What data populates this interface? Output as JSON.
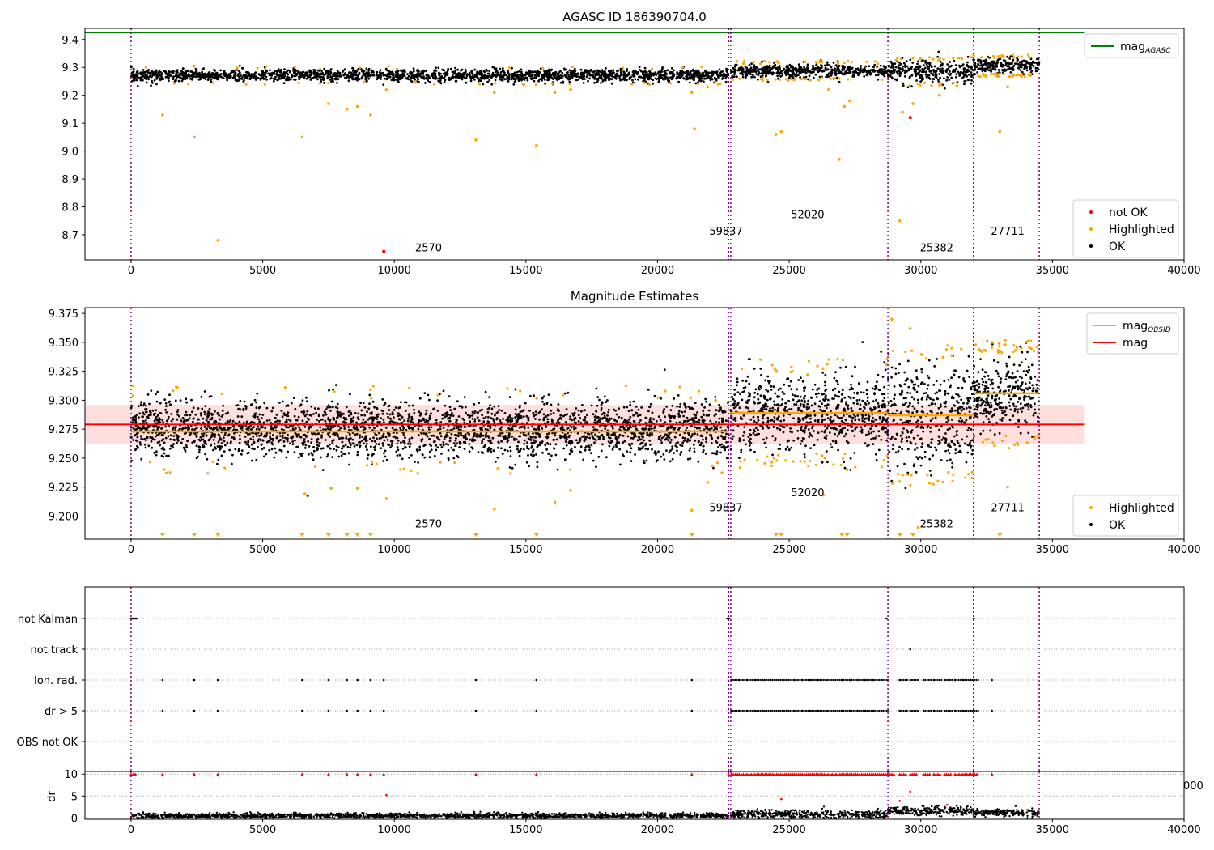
{
  "colors": {
    "ok": "#000000",
    "highlighted": "#ffa500",
    "not_ok": "#ff0000",
    "agasc_line": "#008000",
    "mag_line": "#ff0000",
    "obsid_line": "#ffa500",
    "obs_boundary": "#800080",
    "band": "#ffd6d6"
  },
  "chart_data": [
    {
      "id": "panel1",
      "type": "scatter",
      "title": "AGASC ID 186390704.0",
      "xlabel": "",
      "ylabel": "",
      "xlim": [
        -1750,
        40000
      ],
      "ylim": [
        8.61,
        9.44
      ],
      "x_ticks": [
        0,
        5000,
        10000,
        15000,
        20000,
        25000,
        30000,
        35000,
        40000
      ],
      "y_ticks": [
        8.7,
        8.8,
        8.9,
        9.0,
        9.1,
        9.2,
        9.3,
        9.4
      ],
      "agasc_mag": 9.425,
      "agasc_line_xrange": [
        -1750,
        36200
      ],
      "obs_boundaries": [
        0,
        22700,
        22780,
        28750,
        32000,
        34500
      ],
      "obs_labels": [
        {
          "text": "2570",
          "x": 11300,
          "y": 8.64
        },
        {
          "text": "59837",
          "x": 22600,
          "y": 8.7
        },
        {
          "text": "52020",
          "x": 25700,
          "y": 8.76
        },
        {
          "text": "25382",
          "x": 30600,
          "y": 8.64
        },
        {
          "text": "27711",
          "x": 33300,
          "y": 8.7
        }
      ],
      "segments": [
        {
          "x0": 0,
          "x1": 22700,
          "mean": 9.271,
          "spread": 0.011
        },
        {
          "x0": 22780,
          "x1": 28750,
          "mean": 9.288,
          "spread": 0.012
        },
        {
          "x0": 28750,
          "x1": 32000,
          "mean": 9.285,
          "spread": 0.02
        },
        {
          "x0": 32000,
          "x1": 34500,
          "mean": 9.306,
          "spread": 0.014
        }
      ],
      "highlighted_points": [
        [
          1200,
          9.13
        ],
        [
          2400,
          9.05
        ],
        [
          3300,
          8.68
        ],
        [
          6500,
          9.05
        ],
        [
          7500,
          9.17
        ],
        [
          8200,
          9.15
        ],
        [
          8600,
          9.16
        ],
        [
          9100,
          9.13
        ],
        [
          9700,
          9.22
        ],
        [
          13100,
          9.04
        ],
        [
          13800,
          9.21
        ],
        [
          15400,
          9.02
        ],
        [
          16100,
          9.21
        ],
        [
          16700,
          9.22
        ],
        [
          21400,
          9.08
        ],
        [
          21300,
          9.21
        ],
        [
          21900,
          9.23
        ],
        [
          22300,
          9.24
        ],
        [
          24500,
          9.06
        ],
        [
          24700,
          9.07
        ],
        [
          26500,
          9.22
        ],
        [
          26900,
          8.97
        ],
        [
          27100,
          9.16
        ],
        [
          27300,
          9.18
        ],
        [
          29200,
          8.75
        ],
        [
          29300,
          9.14
        ],
        [
          29700,
          9.17
        ],
        [
          30700,
          9.2
        ],
        [
          33000,
          9.07
        ],
        [
          33300,
          9.23
        ]
      ],
      "not_ok_points": [
        [
          9600,
          8.64
        ],
        [
          29600,
          9.12
        ]
      ],
      "legend_top": [
        {
          "label": "mag",
          "sub": "AGASC",
          "type": "line",
          "color": "#008000"
        }
      ],
      "legend_bottom": [
        {
          "label": "not OK",
          "type": "dot",
          "color": "#ff0000"
        },
        {
          "label": "Highlighted",
          "type": "dot",
          "color": "#ffa500"
        },
        {
          "label": "OK",
          "type": "dot",
          "color": "#000000"
        }
      ]
    },
    {
      "id": "panel2",
      "type": "scatter",
      "title": "Magnitude Estimates",
      "xlabel": "",
      "ylabel": "",
      "xlim": [
        -1750,
        40000
      ],
      "ylim": [
        9.18,
        9.38
      ],
      "x_ticks": [
        0,
        5000,
        10000,
        15000,
        20000,
        25000,
        30000,
        35000,
        40000
      ],
      "y_ticks": [
        9.2,
        9.225,
        9.25,
        9.275,
        9.3,
        9.325,
        9.35,
        9.375
      ],
      "y_tick_labels": [
        "9.200",
        "9.225",
        "9.250",
        "9.275",
        "9.300",
        "9.325",
        "9.350",
        "9.375"
      ],
      "mag": 9.279,
      "mag_band": [
        9.262,
        9.296
      ],
      "mag_line_xrange": [
        -1750,
        36200
      ],
      "obsid_mags": [
        {
          "x0": 0,
          "x1": 22700,
          "mag": 9.273
        },
        {
          "x0": 22780,
          "x1": 28750,
          "mag": 9.289
        },
        {
          "x0": 28750,
          "x1": 32000,
          "mag": 9.287
        },
        {
          "x0": 32000,
          "x1": 34500,
          "mag": 9.306
        }
      ],
      "obs_boundaries": [
        0,
        22700,
        22780,
        28750,
        32000,
        34500
      ],
      "obs_labels": [
        {
          "text": "2570",
          "x": 11300,
          "y": 9.19
        },
        {
          "text": "59837",
          "x": 22600,
          "y": 9.204
        },
        {
          "text": "52020",
          "x": 25700,
          "y": 9.217
        },
        {
          "text": "25382",
          "x": 30600,
          "y": 9.19
        },
        {
          "text": "27711",
          "x": 33300,
          "y": 9.204
        }
      ],
      "segments": [
        {
          "x0": 0,
          "x1": 22700,
          "mean": 9.275,
          "spread": 0.012
        },
        {
          "x0": 22780,
          "x1": 28750,
          "mean": 9.289,
          "spread": 0.016
        },
        {
          "x0": 28750,
          "x1": 32000,
          "mean": 9.287,
          "spread": 0.022
        },
        {
          "x0": 32000,
          "x1": 34500,
          "mean": 9.305,
          "spread": 0.016
        }
      ],
      "highlighted_points": [
        [
          6600,
          9.219
        ],
        [
          8600,
          9.224
        ],
        [
          7600,
          9.224
        ],
        [
          9700,
          9.215
        ],
        [
          13800,
          9.206
        ],
        [
          16100,
          9.212
        ],
        [
          16700,
          9.222
        ],
        [
          21300,
          9.205
        ],
        [
          21900,
          9.229
        ],
        [
          26300,
          9.218
        ],
        [
          27200,
          9.24
        ],
        [
          29900,
          9.19
        ],
        [
          33300,
          9.225
        ],
        [
          22200,
          9.3
        ],
        [
          24500,
          9.325
        ],
        [
          25700,
          9.322
        ],
        [
          28900,
          9.37
        ],
        [
          29600,
          9.362
        ]
      ],
      "clipped_points_x": [
        1200,
        2400,
        3300,
        6500,
        7500,
        8200,
        8600,
        9100,
        13100,
        15400,
        21300,
        24500,
        24700,
        27000,
        27200,
        29200,
        29700,
        33000
      ],
      "legend_top": [
        {
          "label": "mag",
          "sub": "OBSID",
          "type": "line",
          "color": "#ffa500"
        },
        {
          "label": "mag",
          "type": "line",
          "color": "#ff0000"
        }
      ],
      "legend_bottom": [
        {
          "label": "Highlighted",
          "type": "dot",
          "color": "#ffa500"
        },
        {
          "label": "OK",
          "type": "dot",
          "color": "#000000"
        }
      ]
    },
    {
      "id": "panel3",
      "type": "scatter",
      "title": "",
      "xlabel": "",
      "ylabel": "",
      "xlim": [
        -1750,
        40000
      ],
      "categories": [
        "not Kalman",
        "not track",
        "Ion. rad.",
        "dr > 5",
        "OBS not OK"
      ],
      "obs_boundaries": [
        0,
        22700,
        22780,
        28750,
        32000,
        34500
      ],
      "not_kalman_x": [
        0,
        50,
        100,
        150,
        200,
        22650,
        22720,
        28700,
        32020
      ],
      "not_track_x": [
        29600
      ],
      "ion_rad_x": [
        1200,
        2400,
        3300,
        6500,
        7500,
        8200,
        8600,
        9100,
        9600,
        13100,
        15400,
        21300,
        22800,
        23100,
        23400,
        23700,
        24000,
        24300,
        24600,
        24900,
        25200,
        25500,
        25800,
        26100,
        26400,
        26700,
        27000,
        27300,
        27600,
        27900,
        28200,
        28500,
        29200,
        29600,
        30100,
        30500,
        30900,
        31300,
        31600,
        31900,
        32700
      ],
      "dr_gt5_x": [
        1200,
        2400,
        3300,
        6500,
        7500,
        8200,
        8600,
        9100,
        9600,
        13100,
        15400,
        21300,
        22800,
        23100,
        23400,
        23700,
        24000,
        24300,
        24600,
        24900,
        25200,
        25500,
        25800,
        26100,
        26400,
        26700,
        27000,
        27300,
        27600,
        27900,
        28200,
        28500,
        29200,
        29600,
        30100,
        30500,
        30900,
        31300,
        31600,
        31900,
        32700
      ]
    },
    {
      "id": "panel4",
      "type": "scatter",
      "title": "",
      "xlabel": "",
      "ylabel": "dr",
      "xlim": [
        -1750,
        40000
      ],
      "ylim": [
        -0.3,
        10.6
      ],
      "y_ticks": [
        0,
        5,
        10
      ],
      "x_ticks": [
        0,
        5000,
        10000,
        15000,
        20000,
        25000,
        30000,
        35000,
        40000
      ],
      "stray_tick_label": "000",
      "segments": [
        {
          "x0": 0,
          "x1": 22700,
          "mean": 0.5,
          "spread": 0.3
        },
        {
          "x0": 22780,
          "x1": 28750,
          "mean": 0.8,
          "spread": 0.5
        },
        {
          "x0": 28750,
          "x1": 32000,
          "mean": 1.6,
          "spread": 0.5
        },
        {
          "x0": 32000,
          "x1": 34500,
          "mean": 1.2,
          "spread": 0.4
        }
      ],
      "capped_x": [
        0,
        80,
        160,
        1200,
        2400,
        3300,
        6500,
        7500,
        8200,
        8600,
        9100,
        9600,
        13100,
        15400,
        21300,
        22700,
        22800,
        23100,
        23400,
        23700,
        24000,
        24300,
        24600,
        24900,
        25200,
        25500,
        25800,
        26100,
        26400,
        26700,
        27000,
        27300,
        27600,
        27900,
        28200,
        28500,
        28750,
        29200,
        29600,
        30100,
        30500,
        30900,
        31300,
        31600,
        31900,
        32700
      ],
      "red_points": [
        [
          9700,
          5.2
        ],
        [
          24700,
          4.3
        ],
        [
          29200,
          3.9
        ],
        [
          29600,
          6.0
        ],
        [
          31000,
          3.0
        ]
      ],
      "obs_boundaries": [
        0,
        22700,
        22780,
        28750,
        32000,
        34500
      ]
    }
  ]
}
